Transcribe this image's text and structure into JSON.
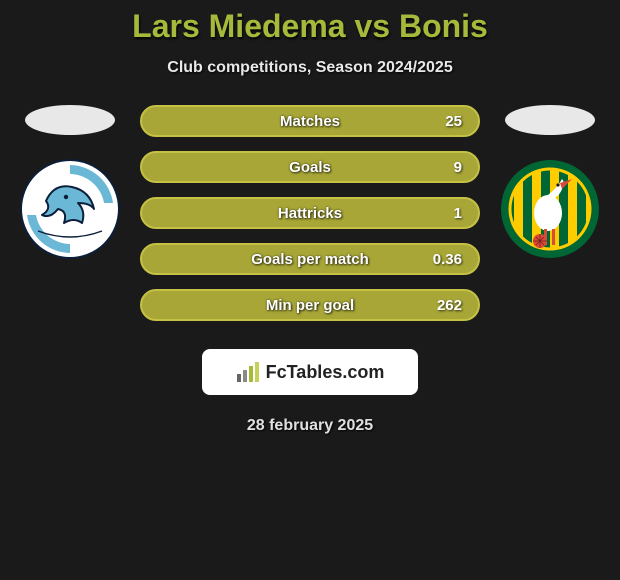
{
  "title": "Lars Miedema vs Bonis",
  "title_color": "#a7b93a",
  "subtitle": "Club competitions, Season 2024/2025",
  "date": "28 february 2025",
  "background_color": "#1a1a1a",
  "ellipse_color": "#e8e8e8",
  "brand": {
    "text": "FcTables.com",
    "bar_colors": [
      "#666666",
      "#888888",
      "#a7b93a",
      "#c4d156"
    ],
    "text_color": "#222222",
    "box_bg": "#ffffff"
  },
  "stats": [
    {
      "label": "Matches",
      "value": "25",
      "fill": "#a7a637",
      "border": "#c4c145"
    },
    {
      "label": "Goals",
      "value": "9",
      "fill": "#a7a637",
      "border": "#c4c145"
    },
    {
      "label": "Hattricks",
      "value": "1",
      "fill": "#a7a637",
      "border": "#c4c145"
    },
    {
      "label": "Goals per match",
      "value": "0.36",
      "fill": "#a7a637",
      "border": "#c4c145"
    },
    {
      "label": "Min per goal",
      "value": "262",
      "fill": "#a7a637",
      "border": "#c4c145"
    }
  ],
  "team_left": {
    "name": "FC Den Bosch",
    "logo_bg": "#ffffff",
    "primary": "#6bb7d6",
    "outline": "#0b1e3a"
  },
  "team_right": {
    "name": "ADO Den Haag",
    "logo_bg": "#006633",
    "stripes": [
      "#ffcc00",
      "#006633"
    ],
    "stork_body": "#ffffff",
    "stork_accent": "#d94a3a"
  }
}
